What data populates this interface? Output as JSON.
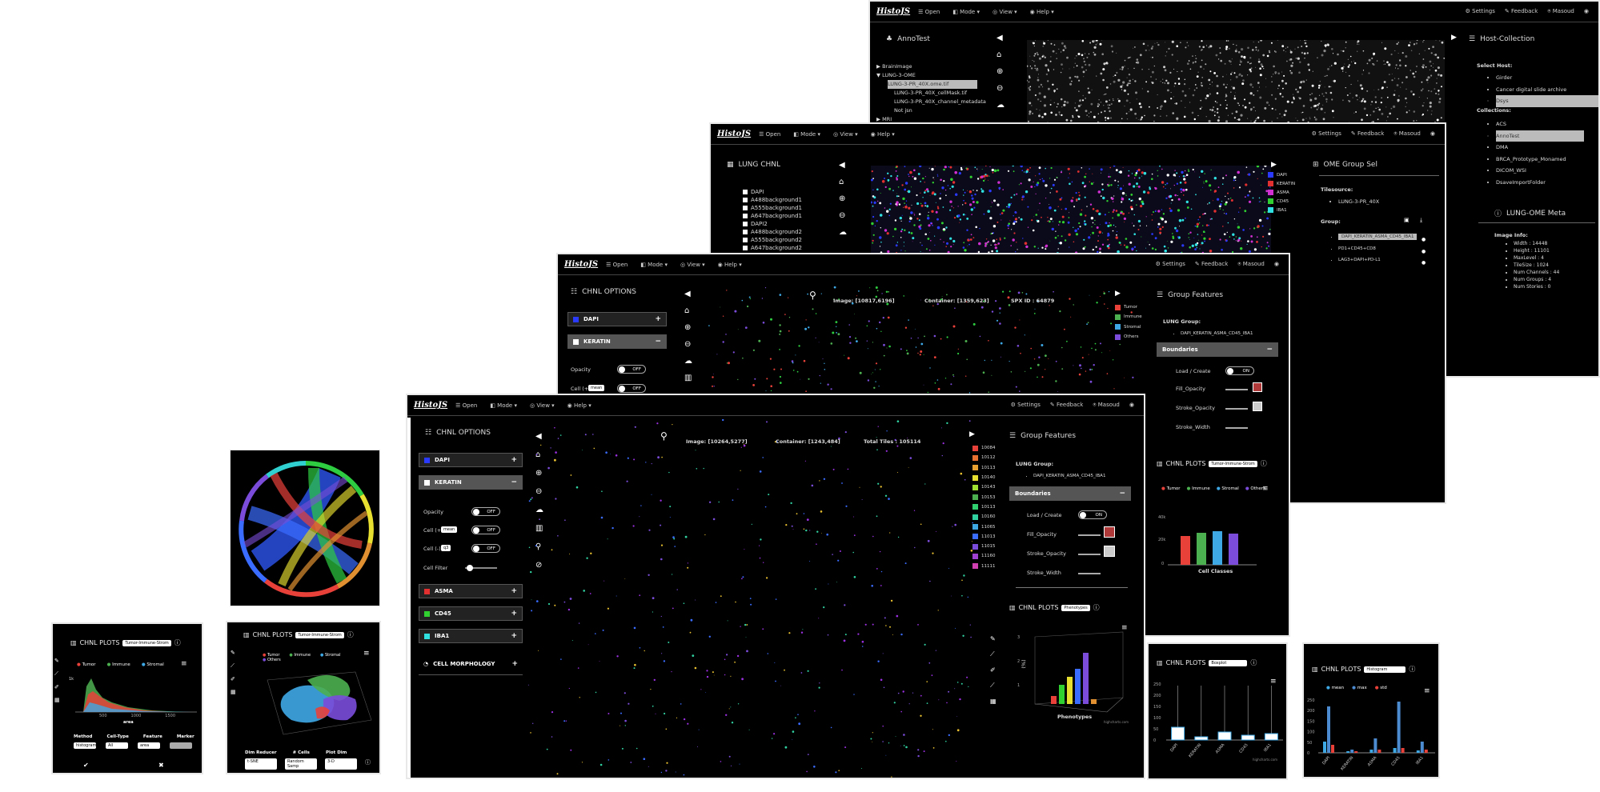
{
  "nav": {
    "brand": "HistoJS",
    "open": "☰ Open",
    "mode": "◧ Mode ▾",
    "view": "◎ View ▾",
    "help": "◉ Help ▾",
    "settings": "⚙ Settings",
    "feedback": "✎ Feedback",
    "user": "⍟ Masoud"
  },
  "win1": {
    "anno_title": "AnnoTest",
    "tree": [
      "▶ BrainImage",
      "▼ LUNG-3-OME",
      "LUNG-3-PR_40X.ome.tif",
      "LUNG-3-PR_40X_cellMask.tif",
      "LUNG-3-PR_40X_channel_metadata",
      "Not jsn",
      "▶ MRI"
    ],
    "host_title": "Host-Collection",
    "select_host": "Select Host:",
    "hosts": [
      "Girder",
      "Cancer digital slide archive",
      "Dsys"
    ],
    "collections_label": "Collections:",
    "collections": [
      "ACS",
      "AnnoTest",
      "DMA",
      "BRCA_Prototype_Monamed",
      "DICOM_WSI",
      "DsaveImportFolder"
    ],
    "meta_title": "LUNG-OME Meta",
    "image_info": "Image Info:",
    "meta": [
      "Width : 14448",
      "Height : 11101",
      "MaxLevel : 4",
      "TileSize : 1024",
      "Num Channels : 44",
      "Num Groups : 4",
      "Num Stories : 0"
    ]
  },
  "win2": {
    "chnl_title": "LUNG CHNL",
    "channels": [
      "DAPI",
      "A488background1",
      "A555background1",
      "A647background1",
      "DAPI2",
      "A488background2",
      "A555background2",
      "A647background2"
    ],
    "group_title": "OME Group Sel",
    "tilesource": "Tilesource:",
    "tilesource_item": "LUNG-3-PR_40X",
    "group_label": "Group:",
    "groups": [
      "DAPI_KERATIN_ASMA_CD45_IBA1",
      "PD1+CD45+CD8",
      "LAG3+DAPI+PD-L1"
    ],
    "legend": [
      "DAPI",
      "KERATIN",
      "ASMA",
      "CD45",
      "IBA1"
    ]
  },
  "win3": {
    "options_title": "CHNL OPTIONS",
    "ch_dapi": "DAPI",
    "ch_keratin": "KERATIN",
    "opacity": "Opacity",
    "cell_plus": "Cell (+)",
    "mean": "mean",
    "off": "OFF",
    "image_coord": "Image: [10817,6196]",
    "container_coord": "Container: [1359,623]",
    "spx": "SPX ID : 64879",
    "legend": [
      "Tumor",
      "Immune",
      "Stromal",
      "Others"
    ],
    "group_features": "Group Features",
    "lung_group": "LUNG Group:",
    "group_item": "DAPI_KERATIN_ASMA_CD45_IBA1",
    "boundaries": "Boundaries",
    "load_create": "Load / Create",
    "on": "ON",
    "fill_opacity": "Fill_Opacity",
    "stroke_opacity": "Stroke_Opacity",
    "stroke_width": "Stroke_Width",
    "plots_title": "CHNL PLOTS",
    "plots_select": "Tumor-Immune-Strom",
    "plot_xlabel": "Cell Classes",
    "plot_legend": [
      "Tumor",
      "Immune",
      "Stromal",
      "Others"
    ]
  },
  "win4": {
    "options_title": "CHNL OPTIONS",
    "ch_dapi": "DAPI",
    "ch_keratin": "KERATIN",
    "opacity": "Opacity",
    "cell_plus": "Cell (+)",
    "cell_minus": "Cell (-)",
    "mean": "mean",
    "q3": "q3",
    "off": "OFF",
    "cell_filter": "Cell Filter",
    "ch_asma": "ASMA",
    "ch_cd45": "CD45",
    "ch_iba1": "IBA1",
    "cell_morph": "CELL MORPHOLOGY",
    "image_coord": "Image: [10264,5277]",
    "container_coord": "Container: [1243,484]",
    "total_tiles": "Total Tiles : 105114",
    "legend": [
      "10084",
      "10112",
      "10113",
      "10140",
      "10143",
      "10153",
      "10113",
      "10160",
      "11065",
      "11013",
      "11015",
      "11160",
      "11111"
    ],
    "group_features": "Group Features",
    "lung_group": "LUNG Group:",
    "group_item": "DAPI_KERATIN_ASMA_CD45_IBA1",
    "boundaries": "Boundaries",
    "load_create": "Load / Create",
    "on": "ON",
    "fill_opacity": "Fill_Opacity",
    "stroke_opacity": "Stroke_Opacity",
    "stroke_width": "Stroke_Width",
    "plots_title": "CHNL PLOTS",
    "plots_select": "Phenotypes",
    "plot_ylabel": "(%)",
    "plot_xlabel": "Phenotypes",
    "credit": "highcharts.com"
  },
  "plot_hist": {
    "title": "CHNL PLOTS",
    "select": "Tumor-Immune-Strom",
    "legend": [
      "Tumor",
      "Immune",
      "Stromal"
    ],
    "xlabel": "area",
    "xticks": [
      "500",
      "1000",
      "1500"
    ],
    "ytick": "1k",
    "labels": [
      "Method",
      "Cell-Type",
      "Feature",
      "Marker"
    ],
    "values": [
      "histogram",
      "All",
      "area",
      ""
    ]
  },
  "plot_3d": {
    "title": "CHNL PLOTS",
    "select": "Tumor-Immune-Strom",
    "legend": [
      "Tumor",
      "Immune",
      "Stromal",
      "Others"
    ],
    "labels": [
      "Dim Reducer",
      "# Cells",
      "Plot Dim"
    ],
    "values": [
      "t-SNE",
      "Random Samp",
      "3-D"
    ]
  },
  "plot_box": {
    "title": "CHNL PLOTS",
    "select": "Boxplot",
    "yticks": [
      "250",
      "200",
      "150",
      "100",
      "50",
      "0"
    ],
    "categories": [
      "DAPI",
      "KERATIN",
      "ASMA",
      "CD45",
      "IBA1"
    ],
    "credit": "highcharts.com"
  },
  "plot_bar": {
    "title": "CHNL PLOTS",
    "select": "Histogram",
    "legend": [
      "mean",
      "max",
      "std"
    ],
    "yticks": [
      "250",
      "200",
      "150",
      "100",
      "50",
      "0"
    ],
    "categories": [
      "DAPI",
      "KERATIN",
      "ASMA",
      "CD45",
      "IBA1"
    ]
  },
  "colors": {
    "tumor": "#e8413a",
    "immune": "#4caf50",
    "stromal": "#3ea8e5",
    "others": "#7a4cd9"
  }
}
